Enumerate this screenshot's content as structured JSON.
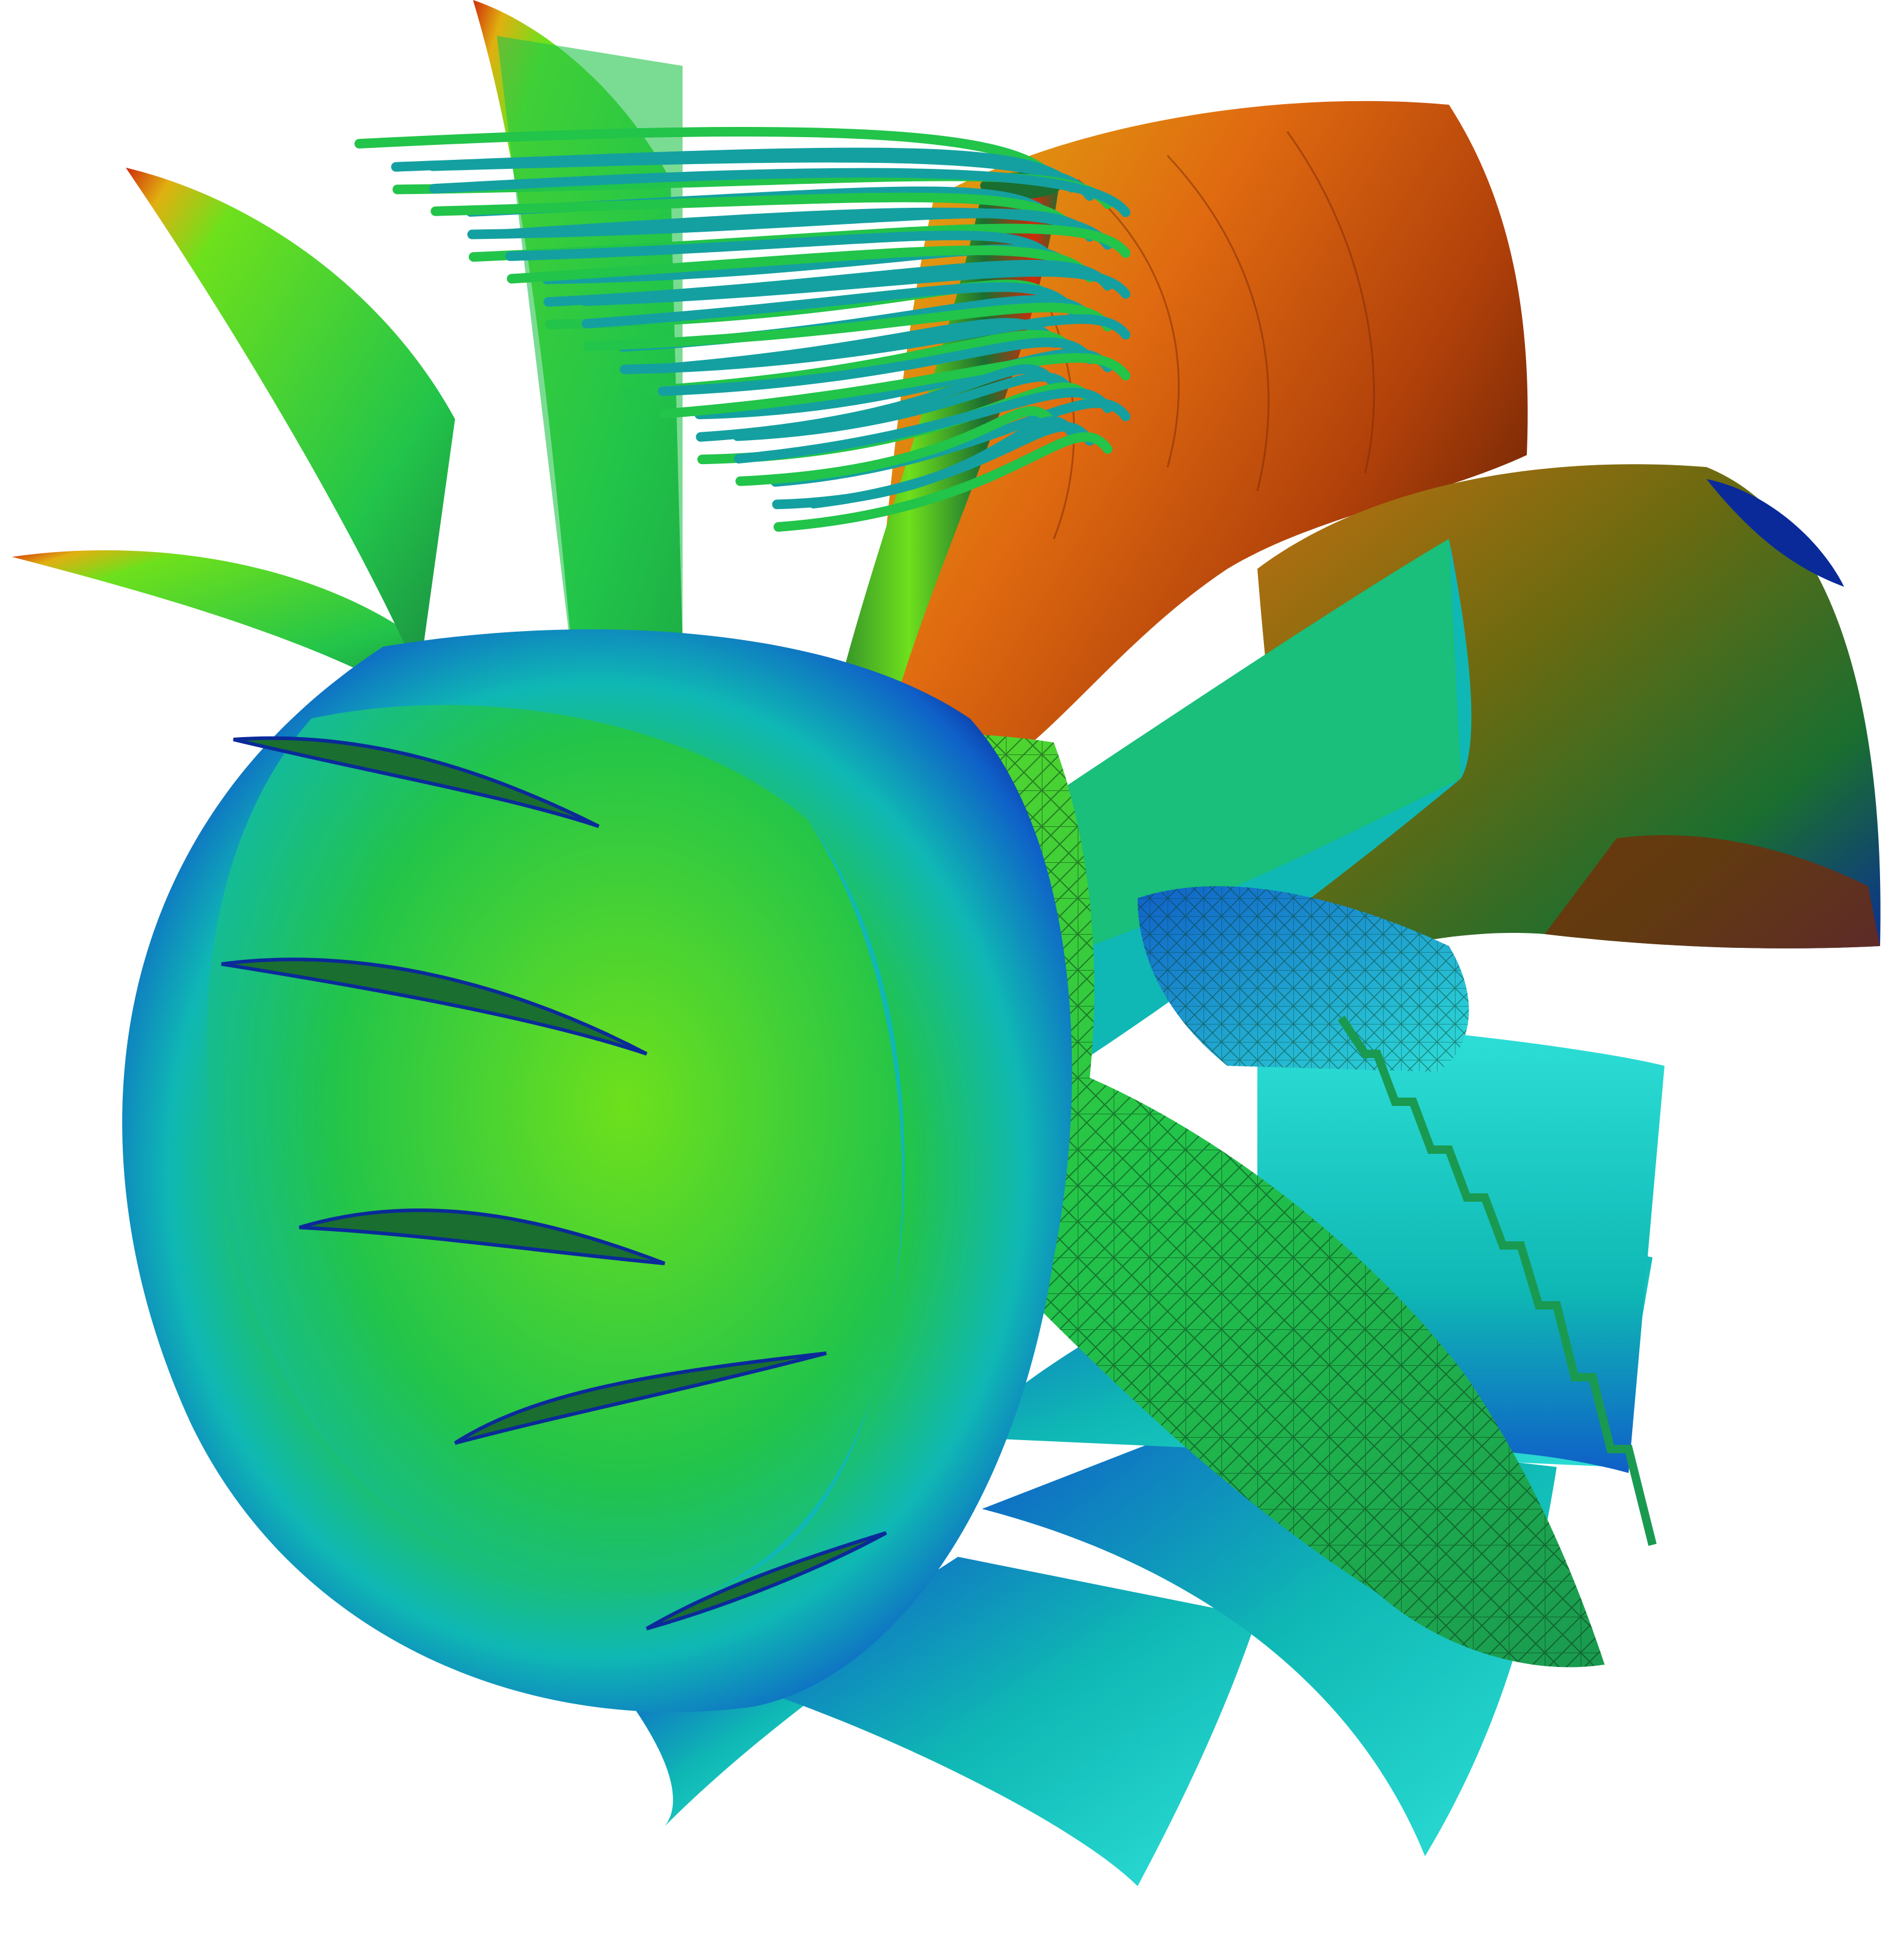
{
  "image": {
    "description_kind": "cfd-turbomachinery-render",
    "background": "#ffffff"
  },
  "palette": {
    "deep_blue": "#0a2a9a",
    "blue": "#0f5fc8",
    "teal": "#0fb8b4",
    "cyan": "#2ee0d8",
    "green": "#22c44a",
    "lime": "#6ee01c",
    "dark_green": "#1a6e30",
    "olive": "#6a6a10",
    "yellow": "#e0b010",
    "orange": "#e06a10",
    "red": "#d02a0a",
    "dark_red": "#7a2a06",
    "streamline": "#14a0a0",
    "mesh_line": "#0b3a18"
  },
  "objects": [
    {
      "name": "inlet-shroud-ring",
      "color": "teal"
    },
    {
      "name": "inner-hub",
      "color": "green"
    },
    {
      "name": "inlet-guide-vanes",
      "count": 5,
      "color": "lime"
    },
    {
      "name": "rotor-blades-left",
      "count": 5,
      "color": "green"
    },
    {
      "name": "outlet-volute",
      "color": "orange"
    },
    {
      "name": "outlet-flange",
      "color": "olive"
    },
    {
      "name": "diffuser-blades-lower",
      "count": 4,
      "color": "cyan"
    },
    {
      "name": "mesh-cut-plane",
      "color": "green"
    },
    {
      "name": "mesh-blue-region",
      "color": "blue"
    },
    {
      "name": "strut-pipe",
      "color": "dark_green"
    },
    {
      "name": "streamlines",
      "count": 34,
      "color": "streamline"
    }
  ]
}
